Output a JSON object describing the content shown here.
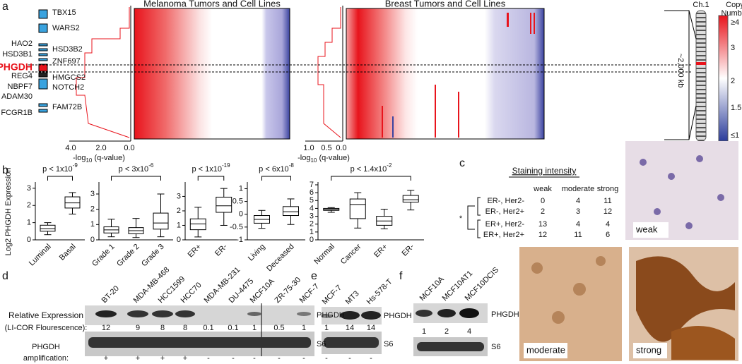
{
  "panel_a": {
    "letter": "a",
    "genes": [
      "TBX15",
      "WARS2",
      "HAO2",
      "HSD3B2",
      "HSD3B1",
      "ZNF697",
      "PHGDH",
      "REG4",
      "HMGCS2",
      "NBPF7",
      "NOTCH2",
      "ADAM30",
      "FAM72B",
      "FCGR1B"
    ],
    "melanoma_title": "Melanoma Tumors and Cell Lines",
    "breast_title": "Breast Tumors and Cell Lines",
    "q_ticks_1": [
      "4.0",
      "2.0",
      "0.0"
    ],
    "q_ticks_2": [
      "1.0",
      "0.5",
      "0.0"
    ],
    "q_label": {
      "pre": "-log",
      "sub": "10",
      "post": " (q-value)"
    },
    "chromosome": "Ch.1",
    "span": "~2,000 kb",
    "colorbar_title": [
      "Copy",
      "Number"
    ],
    "colorbar_ticks": [
      "≥4",
      "3",
      "2",
      "1.5",
      "≤1"
    ]
  },
  "panel_b": {
    "letter": "b",
    "ylabel": "Log2 PHGDH Expression",
    "plots": [
      {
        "p": {
          "text": "p < 1x10",
          "exp": "-9"
        },
        "ylim": [
          0,
          3.2
        ],
        "yticks": [
          0,
          1,
          2,
          3
        ],
        "categories": [
          "Luminal",
          "Basal"
        ],
        "boxes": [
          {
            "min": 0.3,
            "q1": 0.5,
            "median": 0.65,
            "q3": 0.85,
            "max": 1.0
          },
          {
            "min": 1.5,
            "q1": 1.85,
            "median": 2.15,
            "q3": 2.5,
            "max": 2.75
          }
        ]
      },
      {
        "p": {
          "text": "p < 3x10",
          "exp": "-6"
        },
        "ylim": [
          0,
          3.6
        ],
        "yticks": [
          0,
          1,
          2,
          3
        ],
        "categories": [
          "Grade 1",
          "Grade 2",
          "Grade 3"
        ],
        "boxes": [
          {
            "min": 0.2,
            "q1": 0.45,
            "median": 0.65,
            "q3": 0.85,
            "max": 1.35
          },
          {
            "min": 0.15,
            "q1": 0.4,
            "median": 0.6,
            "q3": 0.8,
            "max": 1.4
          },
          {
            "min": 0.2,
            "q1": 0.7,
            "median": 1.1,
            "q3": 1.75,
            "max": 3.0
          }
        ]
      },
      {
        "p": {
          "text": "p < 1x10",
          "exp": "-19"
        },
        "ylim": [
          0,
          3.8
        ],
        "yticks": [
          0,
          1,
          2,
          3
        ],
        "categories": [
          "ER+",
          "ER-"
        ],
        "boxes": [
          {
            "min": 0.2,
            "q1": 0.7,
            "median": 1.1,
            "q3": 1.45,
            "max": 2.25
          },
          {
            "min": 1.0,
            "q1": 1.9,
            "median": 2.35,
            "q3": 2.95,
            "max": 3.55
          }
        ]
      },
      {
        "p": {
          "text": "p < 6x10",
          "exp": "-8"
        },
        "ylim": [
          -1,
          1.15
        ],
        "yticks": [
          -1,
          -0.5,
          0,
          0.5,
          1
        ],
        "categories": [
          "Living",
          "Deceased"
        ],
        "boxes": [
          {
            "min": -0.55,
            "q1": -0.35,
            "median": -0.2,
            "q3": -0.05,
            "max": 0.15
          },
          {
            "min": -0.4,
            "q1": -0.05,
            "median": 0.1,
            "q3": 0.3,
            "max": 0.6
          }
        ]
      },
      {
        "p": {
          "text": "p < 1.4x10",
          "exp": "-2"
        },
        "ylim": [
          0,
          7
        ],
        "yticks": [
          0,
          1,
          2,
          3,
          4,
          5,
          6,
          7
        ],
        "categories": [
          "Normal",
          "Cancer",
          "ER+",
          "ER-"
        ],
        "boxes": [
          {
            "min": 3.5,
            "q1": 3.75,
            "median": 3.85,
            "q3": 4.0,
            "max": 4.1
          },
          {
            "min": 1.5,
            "q1": 2.7,
            "median": 4.5,
            "q3": 5.2,
            "max": 6.0
          },
          {
            "min": 1.4,
            "q1": 1.85,
            "median": 2.4,
            "q3": 3.0,
            "max": 3.9
          },
          {
            "min": 3.8,
            "q1": 4.8,
            "median": 5.1,
            "q3": 5.65,
            "max": 6.3
          }
        ]
      }
    ]
  },
  "panel_c": {
    "letter": "c",
    "title": "Staining intensity",
    "columns": [
      "weak",
      "moderate",
      "strong"
    ],
    "rows": [
      {
        "label": "ER-, Her2-",
        "values": [
          0,
          4,
          11
        ]
      },
      {
        "label": "ER-, Her2+",
        "values": [
          2,
          3,
          12
        ]
      },
      {
        "label": "ER+, Her2-",
        "values": [
          13,
          4,
          4
        ]
      },
      {
        "label": "ER+, Her2+",
        "values": [
          12,
          11,
          6
        ]
      }
    ],
    "marker": "*",
    "images": [
      "weak",
      "moderate",
      "strong"
    ]
  },
  "panel_d": {
    "letter": "d",
    "lanes": [
      "BT-20",
      "MDA-MB-468",
      "HCC1599",
      "HCC70",
      "MDA-MB-231",
      "DU-4475",
      "MCF10A",
      "ZR-75-30",
      "MCF-7"
    ],
    "expression_label": [
      "Relative Expression",
      "(LI-COR Flourescence):"
    ],
    "values": [
      12,
      9,
      8,
      8,
      0.1,
      0.1,
      1,
      0.5,
      1
    ],
    "blot_labels": [
      "PHGDH",
      "S6"
    ],
    "amplification_label": [
      "PHGDH",
      "amplification:"
    ],
    "amplification": [
      "+",
      "+",
      "+",
      "+",
      "-",
      "-",
      "-",
      "-",
      "-"
    ]
  },
  "panel_e": {
    "letter": "e",
    "lanes": [
      "MCF-7",
      "MT3",
      "Hs-578-T"
    ],
    "values": [
      1,
      14,
      14
    ],
    "blot_labels": [
      "PHGDH",
      "S6"
    ],
    "amplification": [
      "-",
      "-",
      "-"
    ]
  },
  "panel_f": {
    "letter": "f",
    "lanes": [
      "MCF10A",
      "MCF10AT1",
      "MCF10DCIS"
    ],
    "values": [
      1,
      2,
      4
    ],
    "blot_labels": [
      "PHGDH",
      "S6"
    ]
  }
}
